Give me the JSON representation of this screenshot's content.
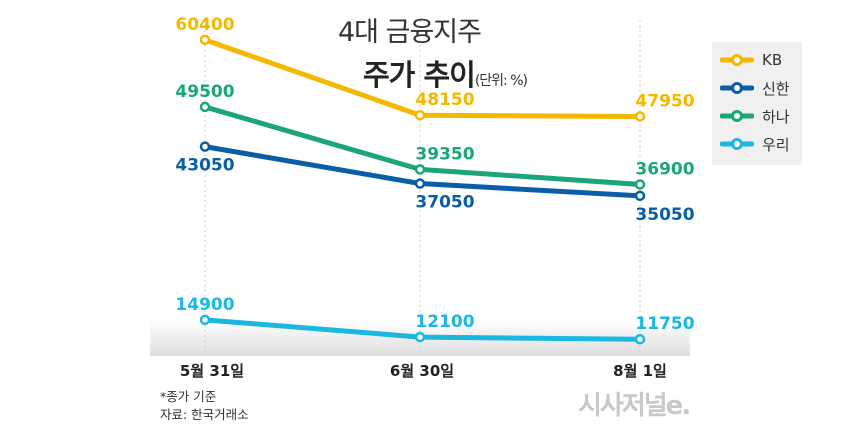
{
  "title": "4대 금융지주",
  "subtitle": "주가 추이",
  "unit": "(단위: %)",
  "notes": [
    "*종가 기준",
    "자료: 한국거래소"
  ],
  "logo": "시사저널e.",
  "chart_data": {
    "type": "line",
    "categories": [
      "5월 31일",
      "6월 30일",
      "8월 1일"
    ],
    "series": [
      {
        "name": "KB",
        "color": "#f5b800",
        "values": [
          60400,
          48150,
          47950
        ]
      },
      {
        "name": "신한",
        "color": "#0a5ea8",
        "values": [
          43050,
          37050,
          35050
        ]
      },
      {
        "name": "하나",
        "color": "#1aa57a",
        "values": [
          49500,
          39350,
          36900
        ]
      },
      {
        "name": "우리",
        "color": "#1ab8e0",
        "values": [
          14900,
          12100,
          11750
        ]
      }
    ],
    "legend": "top-right",
    "grid": false
  }
}
